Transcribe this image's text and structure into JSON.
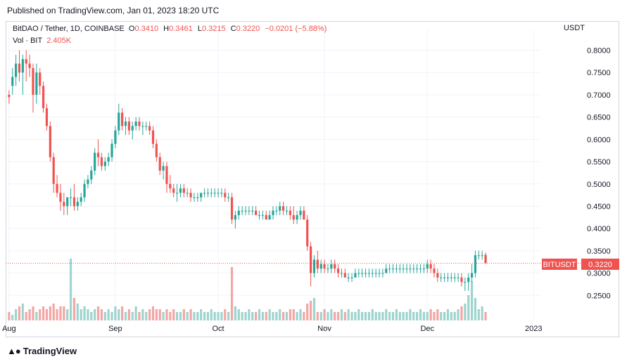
{
  "header": {
    "published": "Published on TradingView.com, Jan 01, 2023 18:20 UTC"
  },
  "legend": {
    "symbol": "BitDAO / Tether, 1D, COINBASE",
    "open_label": "O",
    "open": "0.3410",
    "high_label": "H",
    "high": "0.3461",
    "low_label": "L",
    "low": "0.3215",
    "close_label": "C",
    "close": "0.3220",
    "change": "−0.0201 (−5.88%)",
    "volume_label": "Vol · BIT",
    "volume": "2.405K"
  },
  "currency": "USDT",
  "price_tag": {
    "symbol": "BITUSDT",
    "value": "0.3220"
  },
  "footer": {
    "logo_text": "TradingView"
  },
  "colors": {
    "up": "#26a69a",
    "down": "#ef5350",
    "up_vol": "#9ed4cf",
    "down_vol": "#f3a6a4",
    "grid": "#f0f3fa"
  },
  "chart_data": {
    "type": "candlestick",
    "title": "BitDAO / Tether, 1D, COINBASE",
    "ylim": [
      0.2,
      0.815
    ],
    "y_ticks": [
      "0.8000",
      "0.7500",
      "0.7000",
      "0.6500",
      "0.6000",
      "0.5500",
      "0.5000",
      "0.4500",
      "0.4000",
      "0.3500",
      "0.3000",
      "0.2500"
    ],
    "x_ticks": [
      {
        "label": "Aug",
        "day": 0
      },
      {
        "label": "Sep",
        "day": 31
      },
      {
        "label": "Oct",
        "day": 61
      },
      {
        "label": "Nov",
        "day": 92
      },
      {
        "label": "Dec",
        "day": 122
      },
      {
        "label": "2023",
        "day": 153
      }
    ],
    "x_range": [
      -1,
      155
    ],
    "last_price": 0.322,
    "candles": [
      [
        0.7,
        0.71,
        0.68,
        0.695,
        3
      ],
      [
        0.72,
        0.76,
        0.7,
        0.74,
        2
      ],
      [
        0.74,
        0.79,
        0.72,
        0.77,
        4
      ],
      [
        0.77,
        0.8,
        0.73,
        0.75,
        5
      ],
      [
        0.75,
        0.79,
        0.7,
        0.78,
        6
      ],
      [
        0.78,
        0.8,
        0.73,
        0.77,
        3
      ],
      [
        0.77,
        0.79,
        0.74,
        0.76,
        4
      ],
      [
        0.76,
        0.77,
        0.66,
        0.7,
        5
      ],
      [
        0.7,
        0.77,
        0.68,
        0.75,
        3
      ],
      [
        0.75,
        0.76,
        0.7,
        0.72,
        4
      ],
      [
        0.72,
        0.73,
        0.66,
        0.67,
        5
      ],
      [
        0.67,
        0.68,
        0.62,
        0.63,
        4
      ],
      [
        0.63,
        0.64,
        0.55,
        0.56,
        5
      ],
      [
        0.56,
        0.57,
        0.48,
        0.5,
        6
      ],
      [
        0.5,
        0.52,
        0.47,
        0.48,
        4
      ],
      [
        0.48,
        0.5,
        0.44,
        0.46,
        5
      ],
      [
        0.46,
        0.48,
        0.43,
        0.45,
        5
      ],
      [
        0.45,
        0.47,
        0.43,
        0.47,
        4
      ],
      [
        0.47,
        0.49,
        0.45,
        0.47,
        22
      ],
      [
        0.47,
        0.5,
        0.44,
        0.45,
        8
      ],
      [
        0.45,
        0.47,
        0.44,
        0.46,
        6
      ],
      [
        0.46,
        0.48,
        0.45,
        0.47,
        4
      ],
      [
        0.47,
        0.51,
        0.46,
        0.5,
        5
      ],
      [
        0.5,
        0.52,
        0.49,
        0.51,
        4
      ],
      [
        0.51,
        0.54,
        0.5,
        0.53,
        3
      ],
      [
        0.53,
        0.58,
        0.52,
        0.57,
        4
      ],
      [
        0.57,
        0.6,
        0.54,
        0.56,
        5
      ],
      [
        0.56,
        0.57,
        0.53,
        0.54,
        4
      ],
      [
        0.54,
        0.56,
        0.53,
        0.55,
        3
      ],
      [
        0.55,
        0.57,
        0.54,
        0.56,
        4
      ],
      [
        0.56,
        0.6,
        0.55,
        0.59,
        3
      ],
      [
        0.59,
        0.63,
        0.58,
        0.62,
        5
      ],
      [
        0.62,
        0.68,
        0.61,
        0.66,
        4
      ],
      [
        0.66,
        0.67,
        0.62,
        0.63,
        5
      ],
      [
        0.63,
        0.65,
        0.61,
        0.64,
        3
      ],
      [
        0.64,
        0.65,
        0.61,
        0.62,
        4
      ],
      [
        0.62,
        0.64,
        0.6,
        0.63,
        3
      ],
      [
        0.63,
        0.65,
        0.62,
        0.64,
        5
      ],
      [
        0.64,
        0.65,
        0.62,
        0.63,
        3
      ],
      [
        0.63,
        0.64,
        0.61,
        0.63,
        4
      ],
      [
        0.63,
        0.64,
        0.62,
        0.63,
        3
      ],
      [
        0.63,
        0.64,
        0.61,
        0.62,
        4
      ],
      [
        0.62,
        0.63,
        0.58,
        0.59,
        5
      ],
      [
        0.59,
        0.6,
        0.55,
        0.56,
        4
      ],
      [
        0.56,
        0.57,
        0.52,
        0.53,
        4
      ],
      [
        0.53,
        0.55,
        0.51,
        0.54,
        3
      ],
      [
        0.54,
        0.55,
        0.48,
        0.5,
        4
      ],
      [
        0.5,
        0.52,
        0.48,
        0.49,
        3
      ],
      [
        0.49,
        0.5,
        0.47,
        0.48,
        4
      ],
      [
        0.48,
        0.5,
        0.46,
        0.48,
        3
      ],
      [
        0.48,
        0.5,
        0.47,
        0.49,
        3
      ],
      [
        0.49,
        0.5,
        0.47,
        0.48,
        4
      ],
      [
        0.48,
        0.49,
        0.47,
        0.48,
        3
      ],
      [
        0.48,
        0.49,
        0.46,
        0.47,
        4
      ],
      [
        0.47,
        0.48,
        0.46,
        0.47,
        3
      ],
      [
        0.47,
        0.48,
        0.46,
        0.47,
        3
      ],
      [
        0.47,
        0.48,
        0.46,
        0.48,
        4
      ],
      [
        0.48,
        0.49,
        0.47,
        0.48,
        3
      ],
      [
        0.48,
        0.49,
        0.47,
        0.48,
        3
      ],
      [
        0.48,
        0.49,
        0.47,
        0.48,
        4
      ],
      [
        0.48,
        0.49,
        0.47,
        0.48,
        3
      ],
      [
        0.48,
        0.49,
        0.47,
        0.48,
        3
      ],
      [
        0.48,
        0.49,
        0.47,
        0.48,
        3
      ],
      [
        0.48,
        0.49,
        0.46,
        0.47,
        4
      ],
      [
        0.47,
        0.48,
        0.46,
        0.47,
        3
      ],
      [
        0.47,
        0.48,
        0.41,
        0.42,
        19
      ],
      [
        0.42,
        0.44,
        0.4,
        0.43,
        5
      ],
      [
        0.43,
        0.45,
        0.42,
        0.44,
        4
      ],
      [
        0.44,
        0.45,
        0.43,
        0.44,
        3
      ],
      [
        0.44,
        0.45,
        0.43,
        0.44,
        3
      ],
      [
        0.44,
        0.45,
        0.43,
        0.44,
        4
      ],
      [
        0.44,
        0.45,
        0.43,
        0.44,
        3
      ],
      [
        0.44,
        0.45,
        0.43,
        0.43,
        3
      ],
      [
        0.43,
        0.44,
        0.42,
        0.43,
        4
      ],
      [
        0.43,
        0.44,
        0.42,
        0.43,
        3
      ],
      [
        0.43,
        0.44,
        0.42,
        0.42,
        3
      ],
      [
        0.42,
        0.44,
        0.42,
        0.43,
        4
      ],
      [
        0.43,
        0.45,
        0.42,
        0.44,
        3
      ],
      [
        0.44,
        0.45,
        0.43,
        0.44,
        3
      ],
      [
        0.44,
        0.46,
        0.43,
        0.45,
        4
      ],
      [
        0.45,
        0.46,
        0.43,
        0.44,
        3
      ],
      [
        0.44,
        0.45,
        0.43,
        0.44,
        3
      ],
      [
        0.44,
        0.45,
        0.42,
        0.43,
        4
      ],
      [
        0.43,
        0.45,
        0.41,
        0.42,
        4
      ],
      [
        0.42,
        0.44,
        0.41,
        0.43,
        3
      ],
      [
        0.43,
        0.45,
        0.42,
        0.44,
        4
      ],
      [
        0.44,
        0.45,
        0.42,
        0.42,
        3
      ],
      [
        0.42,
        0.43,
        0.35,
        0.36,
        6
      ],
      [
        0.36,
        0.37,
        0.27,
        0.3,
        7
      ],
      [
        0.3,
        0.34,
        0.29,
        0.33,
        8
      ],
      [
        0.33,
        0.35,
        0.3,
        0.31,
        3
      ],
      [
        0.31,
        0.33,
        0.3,
        0.32,
        3
      ],
      [
        0.32,
        0.33,
        0.3,
        0.31,
        4
      ],
      [
        0.31,
        0.32,
        0.3,
        0.31,
        3
      ],
      [
        0.31,
        0.33,
        0.3,
        0.32,
        4
      ],
      [
        0.32,
        0.33,
        0.3,
        0.31,
        3
      ],
      [
        0.31,
        0.32,
        0.29,
        0.3,
        3
      ],
      [
        0.3,
        0.31,
        0.29,
        0.3,
        4
      ],
      [
        0.3,
        0.31,
        0.29,
        0.29,
        3
      ],
      [
        0.29,
        0.3,
        0.28,
        0.29,
        4
      ],
      [
        0.29,
        0.3,
        0.28,
        0.29,
        3
      ],
      [
        0.29,
        0.31,
        0.29,
        0.3,
        3
      ],
      [
        0.3,
        0.31,
        0.29,
        0.3,
        4
      ],
      [
        0.3,
        0.31,
        0.29,
        0.3,
        3
      ],
      [
        0.3,
        0.31,
        0.29,
        0.3,
        3
      ],
      [
        0.3,
        0.31,
        0.29,
        0.3,
        3
      ],
      [
        0.3,
        0.31,
        0.29,
        0.3,
        4
      ],
      [
        0.3,
        0.31,
        0.29,
        0.3,
        3
      ],
      [
        0.3,
        0.31,
        0.29,
        0.3,
        3
      ],
      [
        0.3,
        0.31,
        0.29,
        0.3,
        3
      ],
      [
        0.3,
        0.32,
        0.3,
        0.31,
        4
      ],
      [
        0.31,
        0.32,
        0.3,
        0.31,
        3
      ],
      [
        0.31,
        0.32,
        0.3,
        0.31,
        3
      ],
      [
        0.31,
        0.32,
        0.3,
        0.31,
        4
      ],
      [
        0.31,
        0.32,
        0.3,
        0.31,
        3
      ],
      [
        0.31,
        0.32,
        0.3,
        0.31,
        3
      ],
      [
        0.31,
        0.32,
        0.3,
        0.31,
        3
      ],
      [
        0.31,
        0.32,
        0.3,
        0.31,
        4
      ],
      [
        0.31,
        0.32,
        0.3,
        0.31,
        3
      ],
      [
        0.31,
        0.32,
        0.3,
        0.31,
        3
      ],
      [
        0.31,
        0.32,
        0.3,
        0.31,
        4
      ],
      [
        0.31,
        0.32,
        0.3,
        0.31,
        3
      ],
      [
        0.31,
        0.33,
        0.3,
        0.32,
        3
      ],
      [
        0.32,
        0.33,
        0.3,
        0.31,
        4
      ],
      [
        0.31,
        0.32,
        0.29,
        0.3,
        3
      ],
      [
        0.3,
        0.31,
        0.28,
        0.29,
        4
      ],
      [
        0.29,
        0.3,
        0.28,
        0.29,
        3
      ],
      [
        0.29,
        0.3,
        0.28,
        0.29,
        3
      ],
      [
        0.29,
        0.3,
        0.28,
        0.29,
        4
      ],
      [
        0.29,
        0.3,
        0.28,
        0.29,
        3
      ],
      [
        0.29,
        0.3,
        0.28,
        0.29,
        3
      ],
      [
        0.29,
        0.3,
        0.28,
        0.29,
        4
      ],
      [
        0.29,
        0.3,
        0.27,
        0.28,
        5
      ],
      [
        0.28,
        0.29,
        0.26,
        0.28,
        6
      ],
      [
        0.28,
        0.3,
        0.26,
        0.29,
        9
      ],
      [
        0.29,
        0.32,
        0.28,
        0.3,
        14
      ],
      [
        0.3,
        0.35,
        0.29,
        0.34,
        8
      ],
      [
        0.34,
        0.35,
        0.33,
        0.34,
        4
      ],
      [
        0.34,
        0.35,
        0.33,
        0.34,
        5
      ],
      [
        0.341,
        0.3461,
        0.3215,
        0.322,
        3
      ]
    ]
  }
}
